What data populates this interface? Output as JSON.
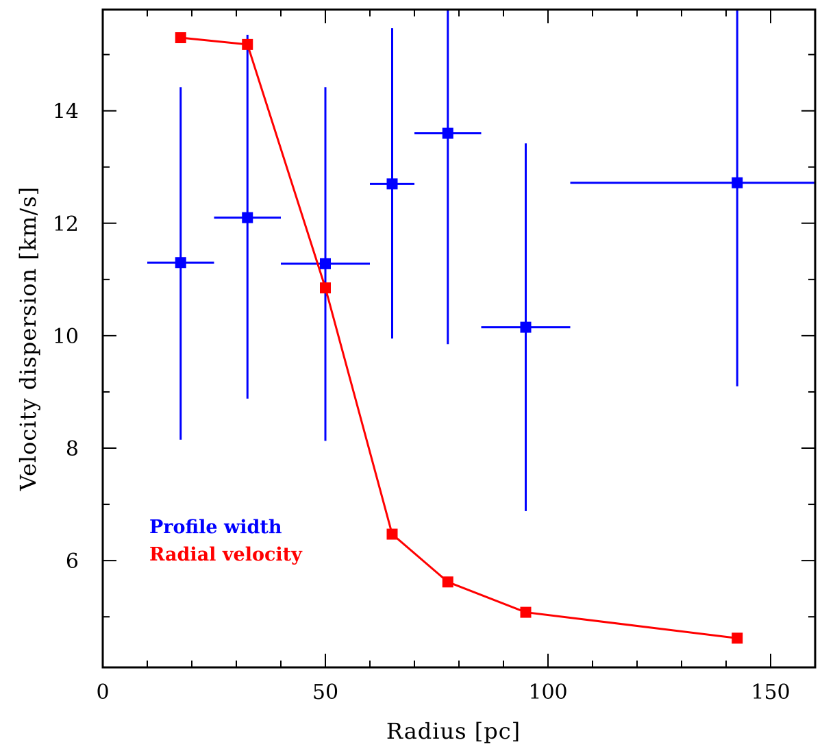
{
  "chart_data": {
    "type": "scatter",
    "title": "",
    "xlabel": "Radius [pc]",
    "ylabel": "Velocity dispersion [km/s]",
    "xlim": [
      0,
      160
    ],
    "ylim": [
      4.1,
      15.8
    ],
    "grid": false,
    "x_ticks": [
      0,
      50,
      100,
      150
    ],
    "y_ticks": [
      6,
      8,
      10,
      12,
      14
    ],
    "legend_position": "bottom-left",
    "series": [
      {
        "name": "Profile width",
        "color": "#0000ff",
        "marker": "square",
        "style": "errorbar",
        "points": [
          {
            "x": 17.5,
            "y": 11.3,
            "xerr": [
              10,
              25
            ],
            "yerr": [
              8.15,
              14.42
            ]
          },
          {
            "x": 32.5,
            "y": 12.1,
            "xerr": [
              25,
              40
            ],
            "yerr": [
              8.88,
              15.35
            ]
          },
          {
            "x": 50,
            "y": 11.28,
            "xerr": [
              40,
              60
            ],
            "yerr": [
              8.13,
              14.42
            ]
          },
          {
            "x": 65,
            "y": 12.7,
            "xerr": [
              60,
              70
            ],
            "yerr": [
              9.95,
              15.47
            ]
          },
          {
            "x": 77.5,
            "y": 13.6,
            "xerr": [
              70,
              85
            ],
            "yerr": [
              9.85,
              15.8
            ]
          },
          {
            "x": 95,
            "y": 10.15,
            "xerr": [
              85,
              105
            ],
            "yerr": [
              6.88,
              13.42
            ]
          },
          {
            "x": 142.5,
            "y": 12.72,
            "xerr": [
              105,
              160
            ],
            "yerr": [
              9.1,
              15.8
            ]
          }
        ]
      },
      {
        "name": "Radial velocity",
        "color": "#ff0000",
        "marker": "square",
        "style": "line",
        "points": [
          {
            "x": 17.5,
            "y": 15.3
          },
          {
            "x": 32.5,
            "y": 15.18
          },
          {
            "x": 50,
            "y": 10.85
          },
          {
            "x": 65,
            "y": 6.47
          },
          {
            "x": 77.5,
            "y": 5.62
          },
          {
            "x": 95,
            "y": 5.08
          },
          {
            "x": 142.5,
            "y": 4.62
          }
        ]
      }
    ]
  }
}
